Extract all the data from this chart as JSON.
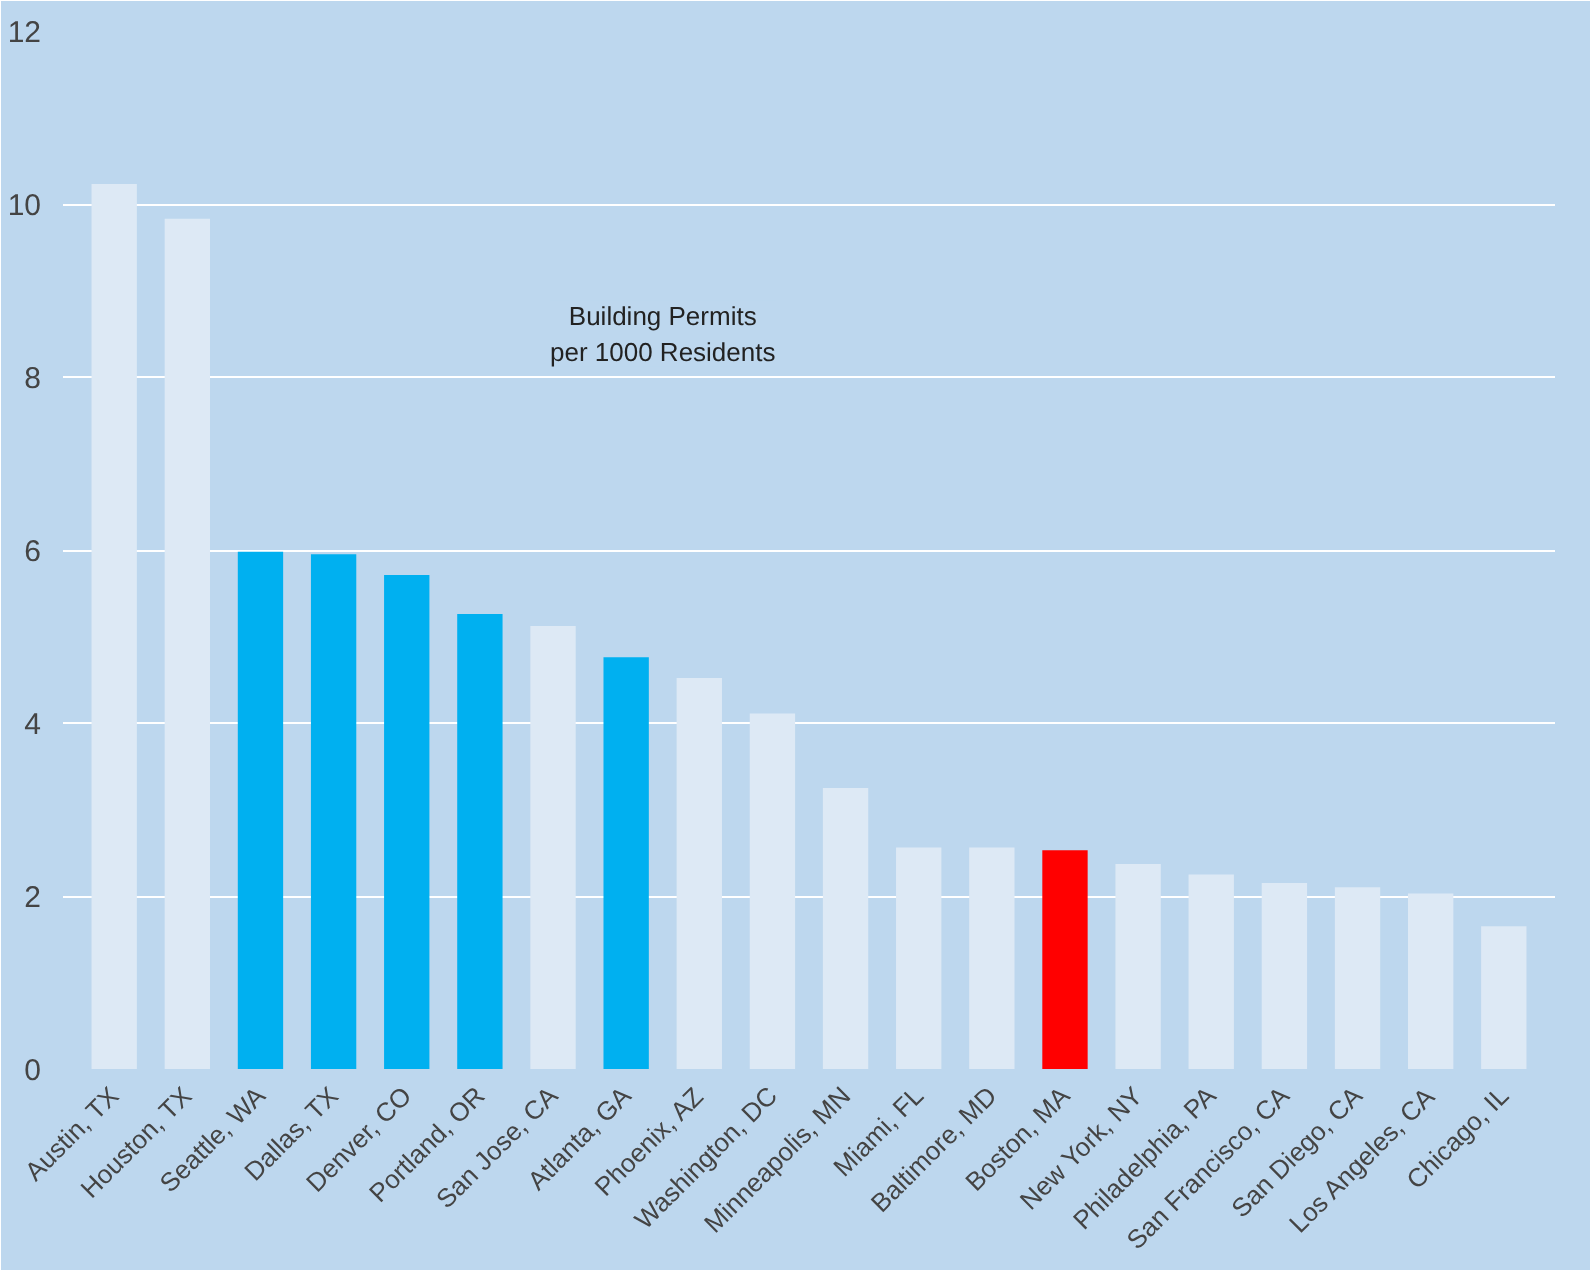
{
  "chart_data": {
    "type": "bar",
    "title": "Building Permits\nper 1000 Residents",
    "categories": [
      "Austin, TX",
      "Houston, TX",
      "Seattle, WA",
      "Dallas, TX",
      "Denver, CO",
      "Portland, OR",
      "San Jose, CA",
      "Atlanta, GA",
      "Phoenix, AZ",
      "Washington, DC",
      "Minneapolis, MN",
      "Miami, FL",
      "Baltimore, MD",
      "Boston, MA",
      "New York, NY",
      "Philadelphia, PA",
      "San Francisco, CA",
      "San Diego, CA",
      "Los Angeles, CA",
      "Chicago, IL"
    ],
    "values": [
      10.23,
      9.83,
      5.98,
      5.95,
      5.71,
      5.26,
      5.12,
      4.76,
      4.52,
      4.11,
      3.25,
      2.56,
      2.56,
      2.53,
      2.37,
      2.25,
      2.15,
      2.1,
      2.03,
      1.65
    ],
    "colors": [
      "#dde9f5",
      "#dde9f5",
      "#00b0f0",
      "#00b0f0",
      "#00b0f0",
      "#00b0f0",
      "#dde9f5",
      "#00b0f0",
      "#dde9f5",
      "#dde9f5",
      "#dde9f5",
      "#dde9f5",
      "#dde9f5",
      "#ff0000",
      "#dde9f5",
      "#dde9f5",
      "#dde9f5",
      "#dde9f5",
      "#dde9f5",
      "#dde9f5"
    ],
    "ylim": [
      0,
      12
    ],
    "yticks": [
      0,
      2,
      4,
      6,
      8,
      10,
      12
    ],
    "grid": "y"
  }
}
